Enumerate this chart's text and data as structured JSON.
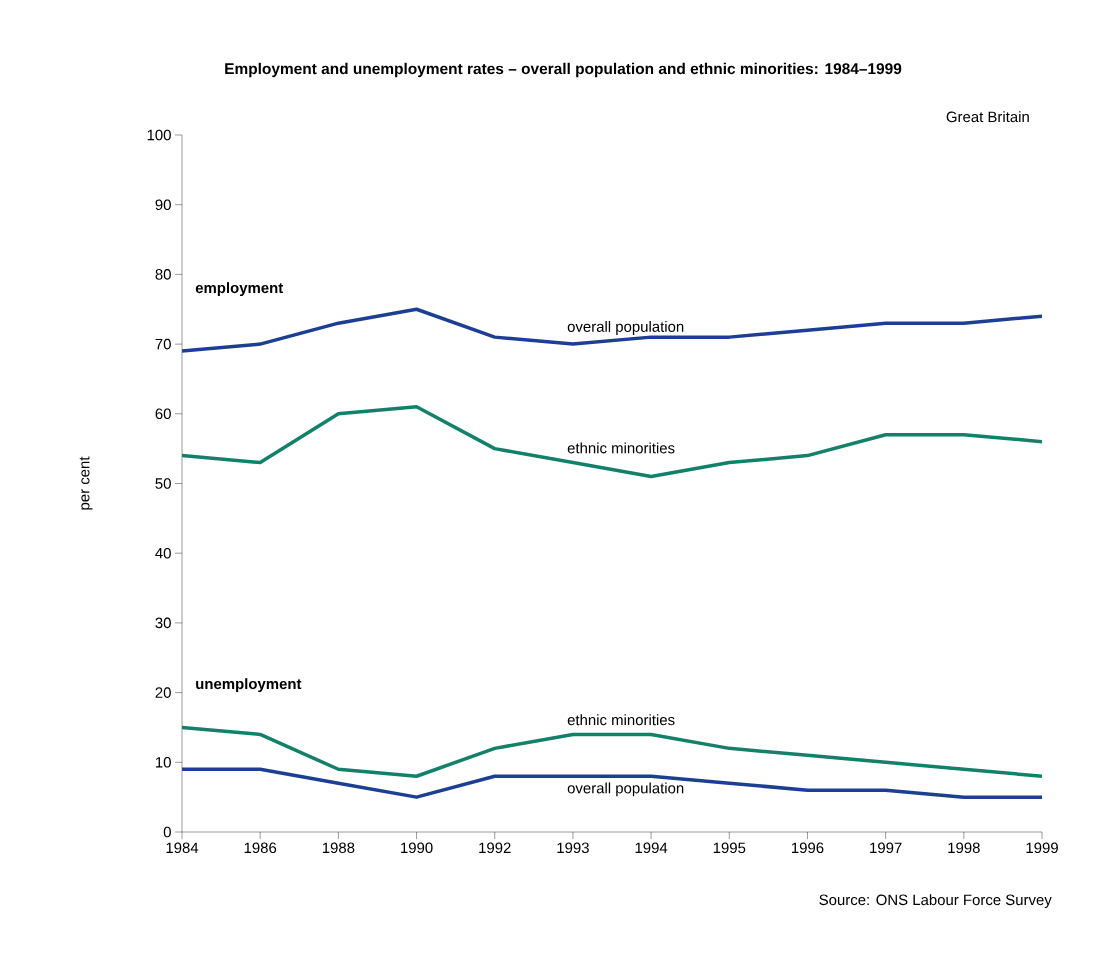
{
  "chart_data": {
    "type": "line",
    "title": "Employment and unemployment rates – overall population and ethnic minorities: 1984–1999",
    "ylabel": "per cent",
    "annotations": [
      "Great Britain",
      "employment",
      "unemployment",
      "Source: ONS Labour Force Survey"
    ],
    "categories": [
      "1984",
      "1986",
      "1988",
      "1990",
      "1992",
      "1993",
      "1994",
      "1995",
      "1996",
      "1997",
      "1998",
      "1999"
    ],
    "series": [
      {
        "name": "overall population",
        "color": "#1c3f94",
        "values": [
          69,
          70,
          73,
          75,
          71,
          70,
          71,
          71,
          72,
          73,
          73,
          74
        ]
      },
      {
        "name": "ethnic minorities",
        "color": "#138069",
        "values": [
          54,
          53,
          60,
          61,
          55,
          53,
          51,
          53,
          54,
          57,
          57,
          56
        ]
      },
      {
        "name": "ethnic minorities",
        "color": "#138069",
        "values": [
          15,
          14,
          9,
          8,
          12,
          14,
          14,
          12,
          11,
          10,
          9,
          8
        ]
      },
      {
        "name": "overall population",
        "color": "#1c3f94",
        "values": [
          9,
          9,
          7,
          5,
          8,
          8,
          8,
          7,
          6,
          6,
          5,
          5
        ]
      }
    ],
    "ylim": [
      0,
      100
    ],
    "yticks": [
      0,
      10,
      20,
      30,
      40,
      50,
      60,
      70,
      80,
      90,
      100
    ],
    "grid": false,
    "legend": false,
    "marker": "none",
    "line_style": "solid"
  }
}
